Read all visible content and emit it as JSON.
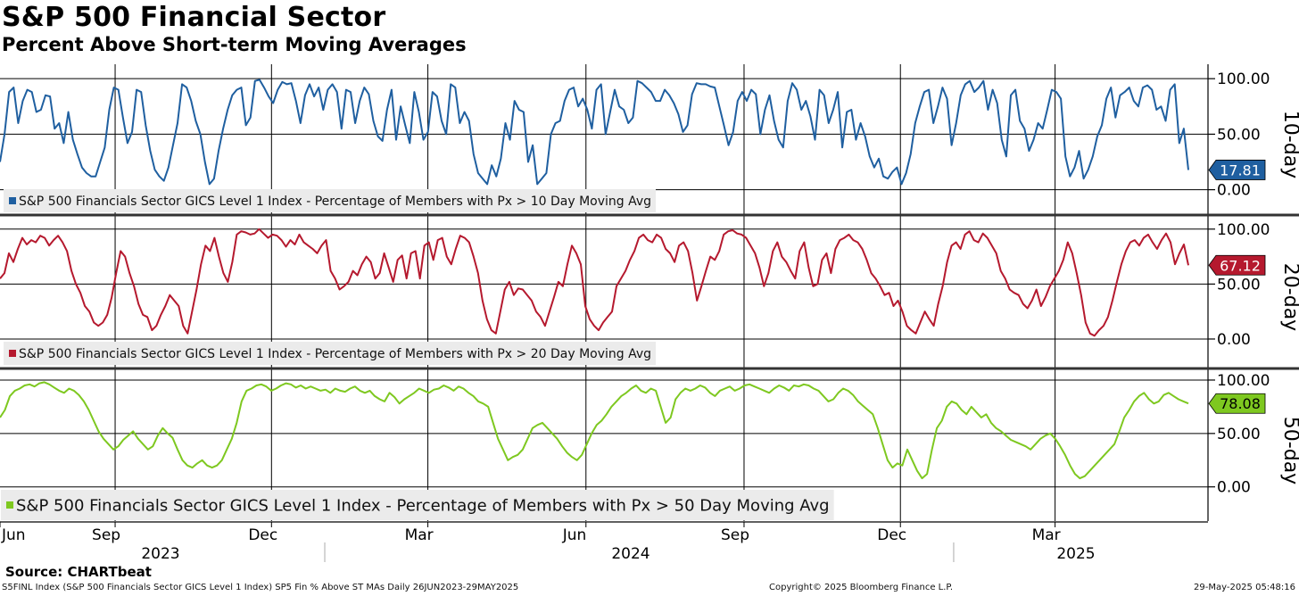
{
  "title": "S&P 500 Financial Sector",
  "subtitle": "Percent Above Short-term Moving Averages",
  "source": "Source: CHARTbeat",
  "footer": {
    "left": "S5FINL Index (S&P 500 Financials Sector GICS Level 1 Index) SP5 Fin % Above ST MAs  Daily 26JUN2023-29MAY2025",
    "middle": "Copyright© 2025 Bloomberg Finance L.P.",
    "right": "29-May-2025 05:48:16"
  },
  "chart_data": [
    {
      "type": "line",
      "panel_label": "10-day",
      "color": "#1f5fa0",
      "last_value": "17.81",
      "legend": "S&P 500 Financials Sector GICS Level 1 Index - Percentage of Members with Px > 10 Day Moving Avg",
      "yticks": [
        "100.00",
        "50.00",
        "0.00"
      ],
      "ylim": [
        -22,
        113
      ],
      "x_start": "2023-06-26",
      "x_end": "2025-05-29",
      "values": [
        25,
        50,
        88,
        92,
        60,
        80,
        90,
        88,
        70,
        72,
        85,
        84,
        55,
        60,
        42,
        70,
        45,
        32,
        20,
        15,
        12,
        12,
        25,
        38,
        72,
        92,
        90,
        65,
        42,
        52,
        90,
        88,
        58,
        35,
        18,
        12,
        8,
        20,
        40,
        60,
        95,
        92,
        80,
        62,
        50,
        25,
        5,
        10,
        35,
        55,
        72,
        85,
        90,
        92,
        58,
        65,
        98,
        99,
        92,
        84,
        78,
        90,
        97,
        95,
        96,
        80,
        60,
        85,
        95,
        84,
        92,
        72,
        90,
        95,
        88,
        55,
        90,
        88,
        60,
        80,
        92,
        86,
        62,
        48,
        44,
        72,
        90,
        45,
        75,
        58,
        42,
        88,
        70,
        45,
        52,
        88,
        84,
        62,
        50,
        95,
        92,
        60,
        70,
        62,
        32,
        15,
        10,
        5,
        22,
        12,
        28,
        60,
        45,
        80,
        72,
        70,
        25,
        40,
        5,
        10,
        15,
        50,
        60,
        62,
        80,
        90,
        92,
        75,
        82,
        72,
        55,
        90,
        95,
        50,
        70,
        90,
        75,
        72,
        60,
        65,
        98,
        96,
        92,
        88,
        80,
        80,
        90,
        85,
        78,
        68,
        52,
        58,
        86,
        96,
        95,
        95,
        93,
        92,
        75,
        58,
        40,
        52,
        80,
        88,
        80,
        90,
        86,
        50,
        72,
        85,
        62,
        45,
        38,
        80,
        96,
        90,
        72,
        80,
        66,
        45,
        90,
        85,
        60,
        72,
        88,
        38,
        70,
        72,
        45,
        60,
        48,
        30,
        20,
        28,
        12,
        10,
        16,
        20,
        5,
        15,
        32,
        60,
        75,
        88,
        90,
        60,
        75,
        92,
        82,
        40,
        60,
        85,
        95,
        98,
        88,
        92,
        98,
        72,
        90,
        78,
        45,
        30,
        85,
        90,
        62,
        55,
        35,
        45,
        60,
        55,
        72,
        90,
        88,
        82,
        30,
        12,
        20,
        35,
        10,
        18,
        30,
        48,
        58,
        82,
        92,
        65,
        85,
        88,
        92,
        80,
        75,
        92,
        94,
        90,
        72,
        75,
        62,
        90,
        95,
        42,
        55,
        17.81
      ]
    },
    {
      "type": "line",
      "panel_label": "20-day",
      "color": "#b5192e",
      "last_value": "67.12",
      "legend": "S&P 500 Financials Sector GICS Level 1 Index - Percentage of Members with Px > 20 Day Moving Avg",
      "yticks": [
        "100.00",
        "50.00",
        "0.00"
      ],
      "ylim": [
        -26,
        112
      ],
      "x_start": "2023-06-26",
      "x_end": "2025-05-29",
      "values": [
        55,
        60,
        78,
        70,
        82,
        92,
        86,
        90,
        88,
        94,
        92,
        85,
        90,
        94,
        88,
        80,
        62,
        50,
        42,
        30,
        25,
        15,
        12,
        15,
        22,
        38,
        60,
        80,
        75,
        60,
        48,
        32,
        22,
        20,
        8,
        12,
        22,
        30,
        40,
        35,
        30,
        12,
        5,
        25,
        45,
        68,
        85,
        80,
        92,
        75,
        60,
        52,
        70,
        95,
        98,
        97,
        95,
        96,
        100,
        96,
        92,
        95,
        94,
        90,
        84,
        90,
        86,
        95,
        88,
        85,
        82,
        78,
        85,
        90,
        62,
        55,
        45,
        48,
        52,
        62,
        58,
        68,
        75,
        70,
        55,
        60,
        78,
        65,
        52,
        72,
        76,
        55,
        78,
        80,
        55,
        85,
        88,
        72,
        90,
        92,
        75,
        68,
        82,
        94,
        92,
        88,
        75,
        60,
        35,
        18,
        8,
        5,
        25,
        45,
        52,
        40,
        46,
        45,
        40,
        35,
        25,
        20,
        12,
        25,
        38,
        52,
        48,
        68,
        85,
        78,
        68,
        30,
        18,
        12,
        8,
        15,
        20,
        25,
        48,
        55,
        62,
        72,
        80,
        92,
        95,
        90,
        88,
        95,
        92,
        82,
        78,
        70,
        85,
        88,
        80,
        60,
        35,
        48,
        62,
        75,
        72,
        80,
        95,
        98,
        99,
        96,
        95,
        92,
        85,
        78,
        65,
        48,
        60,
        80,
        88,
        75,
        70,
        62,
        55,
        80,
        88,
        65,
        48,
        50,
        72,
        78,
        60,
        82,
        90,
        92,
        95,
        90,
        88,
        82,
        72,
        60,
        55,
        48,
        40,
        42,
        30,
        35,
        25,
        12,
        8,
        5,
        15,
        25,
        18,
        12,
        32,
        48,
        70,
        85,
        88,
        82,
        95,
        98,
        90,
        88,
        96,
        92,
        85,
        78,
        62,
        55,
        45,
        42,
        40,
        32,
        28,
        35,
        45,
        30,
        38,
        48,
        55,
        62,
        72,
        88,
        78,
        60,
        40,
        15,
        5,
        3,
        8,
        12,
        20,
        35,
        52,
        68,
        80,
        88,
        90,
        85,
        92,
        95,
        88,
        82,
        90,
        96,
        88,
        68,
        78,
        86,
        67.12
      ]
    },
    {
      "type": "line",
      "panel_label": "50-day",
      "color": "#7ec820",
      "last_value": "78.08",
      "legend": "S&P 500 Financials Sector GICS Level 1 Index - Percentage of Members with Px > 50 Day Moving Avg",
      "yticks": [
        "100.00",
        "50.00",
        "0.00"
      ],
      "ylim": [
        -32,
        110
      ],
      "x_start": "2023-06-26",
      "x_end": "2025-05-29",
      "values": [
        65,
        72,
        85,
        90,
        92,
        95,
        96,
        94,
        97,
        98,
        96,
        93,
        90,
        88,
        92,
        90,
        86,
        80,
        72,
        62,
        52,
        45,
        40,
        35,
        38,
        44,
        48,
        52,
        45,
        40,
        35,
        38,
        48,
        55,
        50,
        46,
        35,
        25,
        20,
        18,
        22,
        25,
        20,
        18,
        20,
        25,
        35,
        45,
        60,
        80,
        90,
        92,
        95,
        96,
        94,
        90,
        92,
        95,
        97,
        96,
        93,
        95,
        92,
        94,
        92,
        90,
        91,
        88,
        92,
        90,
        89,
        92,
        94,
        90,
        88,
        90,
        85,
        82,
        80,
        88,
        84,
        78,
        82,
        85,
        88,
        92,
        90,
        88,
        91,
        92,
        95,
        93,
        90,
        94,
        92,
        88,
        85,
        80,
        78,
        75,
        60,
        45,
        35,
        25,
        28,
        30,
        35,
        45,
        55,
        58,
        60,
        55,
        50,
        45,
        38,
        32,
        28,
        25,
        30,
        40,
        50,
        58,
        62,
        68,
        75,
        80,
        85,
        88,
        92,
        95,
        90,
        88,
        92,
        90,
        75,
        60,
        65,
        82,
        88,
        92,
        90,
        92,
        95,
        93,
        88,
        85,
        90,
        92,
        94,
        90,
        92,
        95,
        96,
        94,
        92,
        90,
        88,
        92,
        95,
        93,
        90,
        95,
        94,
        96,
        95,
        92,
        90,
        85,
        80,
        82,
        88,
        92,
        90,
        86,
        80,
        76,
        72,
        68,
        55,
        40,
        25,
        18,
        22,
        20,
        35,
        25,
        15,
        8,
        12,
        35,
        55,
        62,
        75,
        80,
        78,
        72,
        68,
        75,
        70,
        65,
        68,
        60,
        55,
        52,
        48,
        44,
        42,
        40,
        38,
        35,
        40,
        45,
        48,
        50,
        45,
        38,
        30,
        20,
        12,
        8,
        10,
        15,
        20,
        25,
        30,
        35,
        40,
        52,
        65,
        72,
        80,
        85,
        88,
        82,
        78,
        80,
        86,
        88,
        85,
        82,
        80,
        78.08
      ]
    }
  ],
  "x_axis": {
    "months": [
      "Jun",
      "Sep",
      "Dec",
      "Mar",
      "Jun",
      "Sep",
      "Dec",
      "Mar"
    ],
    "years": [
      "2023",
      "2024",
      "2025"
    ]
  }
}
